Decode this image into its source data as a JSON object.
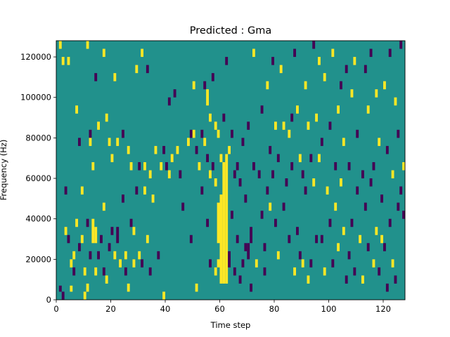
{
  "chart_data": {
    "type": "heatmap",
    "title": "Predicted : Gma",
    "xlabel": "Time step",
    "ylabel": "Frequency (Hz)",
    "xlim": [
      0,
      128
    ],
    "ylim": [
      0,
      128000
    ],
    "x_ticks": [
      0,
      20,
      40,
      60,
      80,
      100,
      120
    ],
    "x_tick_labels": [
      "0",
      "20",
      "40",
      "60",
      "80",
      "100",
      "120"
    ],
    "y_ticks": [
      0,
      20000,
      40000,
      60000,
      80000,
      100000,
      120000
    ],
    "y_tick_labels": [
      "0",
      "20000",
      "40000",
      "60000",
      "80000",
      "100000",
      "120000"
    ],
    "grid": false,
    "colormap": "viridis",
    "levels": [
      -1,
      0,
      1
    ],
    "level_colors": {
      "-1": "#440154",
      "0": "#21918c",
      "1": "#fde725"
    },
    "background_level": 0,
    "cells_note": "each cell = [time_step, frequency_bin_start_Hz, frequency_bin_end_Hz, level]",
    "cells": [
      [
        1,
        124000,
        128000,
        1
      ],
      [
        1,
        4000,
        7000,
        -1
      ],
      [
        2,
        116000,
        120000,
        1
      ],
      [
        2,
        0,
        4000,
        -1
      ],
      [
        3,
        52000,
        56000,
        -1
      ],
      [
        3,
        32000,
        36000,
        1
      ],
      [
        4,
        116000,
        120000,
        1
      ],
      [
        4,
        28000,
        32000,
        -1
      ],
      [
        5,
        16000,
        20000,
        1
      ],
      [
        5,
        4000,
        7000,
        1
      ],
      [
        6,
        20000,
        24000,
        1
      ],
      [
        6,
        12000,
        16000,
        -1
      ],
      [
        7,
        92000,
        96000,
        1
      ],
      [
        7,
        36000,
        40000,
        1
      ],
      [
        8,
        76000,
        80000,
        -1
      ],
      [
        8,
        24000,
        28000,
        -1
      ],
      [
        9,
        52000,
        56000,
        1
      ],
      [
        9,
        28000,
        32000,
        1
      ],
      [
        10,
        12000,
        16000,
        1
      ],
      [
        10,
        0,
        4000,
        1
      ],
      [
        11,
        124000,
        128000,
        1
      ],
      [
        11,
        36000,
        40000,
        -1
      ],
      [
        11,
        4000,
        8000,
        1
      ],
      [
        12,
        80000,
        84000,
        -1
      ],
      [
        12,
        76000,
        80000,
        1
      ],
      [
        12,
        20000,
        24000,
        -1
      ],
      [
        13,
        64000,
        68000,
        1
      ],
      [
        13,
        28000,
        40000,
        1
      ],
      [
        14,
        108000,
        112000,
        -1
      ],
      [
        14,
        28000,
        36000,
        1
      ],
      [
        14,
        12000,
        16000,
        1
      ],
      [
        15,
        84000,
        88000,
        1
      ],
      [
        15,
        20000,
        24000,
        -1
      ],
      [
        16,
        28000,
        32000,
        -1
      ],
      [
        17,
        120000,
        124000,
        1
      ],
      [
        17,
        44000,
        48000,
        1
      ],
      [
        17,
        12000,
        16000,
        -1
      ],
      [
        18,
        88000,
        92000,
        1
      ],
      [
        18,
        8000,
        12000,
        1
      ],
      [
        19,
        76000,
        80000,
        1
      ],
      [
        19,
        24000,
        28000,
        -1
      ],
      [
        20,
        68000,
        72000,
        1
      ],
      [
        20,
        32000,
        36000,
        -1
      ],
      [
        21,
        108000,
        112000,
        1
      ],
      [
        21,
        20000,
        24000,
        1
      ],
      [
        22,
        76000,
        80000,
        1
      ],
      [
        22,
        28000,
        36000,
        -1
      ],
      [
        23,
        16000,
        20000,
        1
      ],
      [
        24,
        80000,
        84000,
        -1
      ],
      [
        24,
        48000,
        52000,
        -1
      ],
      [
        25,
        20000,
        24000,
        1
      ],
      [
        25,
        12000,
        16000,
        -1
      ],
      [
        26,
        72000,
        76000,
        1
      ],
      [
        26,
        4000,
        8000,
        1
      ],
      [
        27,
        64000,
        68000,
        1
      ],
      [
        27,
        36000,
        40000,
        -1
      ],
      [
        28,
        16000,
        20000,
        1
      ],
      [
        28,
        32000,
        36000,
        1
      ],
      [
        29,
        112000,
        116000,
        1
      ],
      [
        29,
        52000,
        56000,
        -1
      ],
      [
        30,
        20000,
        24000,
        1
      ],
      [
        30,
        64000,
        68000,
        -1
      ],
      [
        31,
        120000,
        124000,
        1
      ],
      [
        31,
        16000,
        20000,
        -1
      ],
      [
        32,
        52000,
        56000,
        1
      ],
      [
        32,
        64000,
        68000,
        1
      ],
      [
        33,
        112000,
        116000,
        -1
      ],
      [
        33,
        28000,
        32000,
        1
      ],
      [
        34,
        60000,
        64000,
        1
      ],
      [
        34,
        12000,
        16000,
        -1
      ],
      [
        35,
        48000,
        52000,
        1
      ],
      [
        36,
        72000,
        76000,
        1
      ],
      [
        37,
        20000,
        24000,
        -1
      ],
      [
        38,
        64000,
        68000,
        1
      ],
      [
        39,
        72000,
        76000,
        -1
      ],
      [
        39,
        0,
        4000,
        1
      ],
      [
        40,
        64000,
        68000,
        -1
      ],
      [
        41,
        96000,
        100000,
        -1
      ],
      [
        41,
        60000,
        64000,
        1
      ],
      [
        42,
        68000,
        72000,
        1
      ],
      [
        43,
        100000,
        104000,
        -1
      ],
      [
        44,
        72000,
        76000,
        1
      ],
      [
        45,
        60000,
        64000,
        -1
      ],
      [
        46,
        44000,
        48000,
        -1
      ],
      [
        48,
        76000,
        80000,
        1
      ],
      [
        49,
        80000,
        84000,
        -1
      ],
      [
        49,
        28000,
        32000,
        -1
      ],
      [
        50,
        104000,
        108000,
        1
      ],
      [
        50,
        80000,
        84000,
        1
      ],
      [
        51,
        72000,
        76000,
        -1
      ],
      [
        51,
        4000,
        8000,
        1
      ],
      [
        52,
        64000,
        68000,
        1
      ],
      [
        53,
        80000,
        84000,
        -1
      ],
      [
        53,
        52000,
        56000,
        -1
      ],
      [
        54,
        104000,
        108000,
        -1
      ],
      [
        54,
        76000,
        80000,
        1
      ],
      [
        55,
        96000,
        104000,
        1
      ],
      [
        55,
        68000,
        72000,
        -1
      ],
      [
        55,
        36000,
        40000,
        -1
      ],
      [
        56,
        88000,
        92000,
        1
      ],
      [
        56,
        60000,
        64000,
        1
      ],
      [
        56,
        16000,
        20000,
        -1
      ],
      [
        57,
        108000,
        112000,
        -1
      ],
      [
        57,
        64000,
        68000,
        -1
      ],
      [
        58,
        84000,
        88000,
        1
      ],
      [
        58,
        56000,
        60000,
        1
      ],
      [
        58,
        12000,
        16000,
        1
      ],
      [
        59,
        80000,
        84000,
        1
      ],
      [
        59,
        28000,
        48000,
        1
      ],
      [
        59,
        16000,
        20000,
        1
      ],
      [
        60,
        8000,
        52000,
        1
      ],
      [
        60,
        68000,
        72000,
        1
      ],
      [
        61,
        8000,
        68000,
        1
      ],
      [
        61,
        88000,
        92000,
        -1
      ],
      [
        62,
        8000,
        72000,
        1
      ],
      [
        62,
        116000,
        120000,
        -1
      ],
      [
        63,
        16000,
        24000,
        -1
      ],
      [
        63,
        72000,
        76000,
        1
      ],
      [
        64,
        40000,
        44000,
        -1
      ],
      [
        64,
        80000,
        84000,
        -1
      ],
      [
        65,
        12000,
        16000,
        -1
      ],
      [
        65,
        60000,
        64000,
        -1
      ],
      [
        66,
        28000,
        32000,
        -1
      ],
      [
        66,
        64000,
        68000,
        -1
      ],
      [
        67,
        8000,
        12000,
        -1
      ],
      [
        67,
        56000,
        60000,
        -1
      ],
      [
        68,
        16000,
        20000,
        -1
      ],
      [
        68,
        76000,
        80000,
        -1
      ],
      [
        69,
        24000,
        28000,
        -1
      ],
      [
        69,
        48000,
        52000,
        -1
      ],
      [
        70,
        20000,
        28000,
        -1
      ],
      [
        70,
        84000,
        88000,
        -1
      ],
      [
        71,
        28000,
        36000,
        -1
      ],
      [
        71,
        4000,
        8000,
        -1
      ],
      [
        72,
        120000,
        124000,
        1
      ],
      [
        72,
        64000,
        68000,
        -1
      ],
      [
        73,
        16000,
        20000,
        1
      ],
      [
        74,
        60000,
        64000,
        -1
      ],
      [
        75,
        40000,
        44000,
        -1
      ],
      [
        75,
        92000,
        96000,
        -1
      ],
      [
        76,
        24000,
        28000,
        -1
      ],
      [
        76,
        12000,
        16000,
        -1
      ],
      [
        77,
        52000,
        56000,
        -1
      ],
      [
        77,
        104000,
        108000,
        1
      ],
      [
        78,
        72000,
        76000,
        -1
      ],
      [
        78,
        44000,
        48000,
        1
      ],
      [
        79,
        60000,
        64000,
        -1
      ],
      [
        79,
        116000,
        120000,
        -1
      ],
      [
        80,
        84000,
        88000,
        1
      ],
      [
        80,
        36000,
        40000,
        -1
      ],
      [
        81,
        68000,
        72000,
        -1
      ],
      [
        81,
        20000,
        24000,
        1
      ],
      [
        82,
        112000,
        116000,
        1
      ],
      [
        83,
        44000,
        48000,
        -1
      ],
      [
        83,
        84000,
        88000,
        1
      ],
      [
        84,
        56000,
        60000,
        -1
      ],
      [
        85,
        80000,
        84000,
        1
      ],
      [
        85,
        28000,
        32000,
        -1
      ],
      [
        86,
        88000,
        92000,
        -1
      ],
      [
        86,
        64000,
        68000,
        -1
      ],
      [
        87,
        120000,
        124000,
        -1
      ],
      [
        87,
        12000,
        16000,
        1
      ],
      [
        88,
        92000,
        96000,
        1
      ],
      [
        88,
        32000,
        36000,
        -1
      ],
      [
        89,
        68000,
        72000,
        1
      ],
      [
        89,
        20000,
        24000,
        -1
      ],
      [
        90,
        60000,
        64000,
        -1
      ],
      [
        90,
        16000,
        20000,
        1
      ],
      [
        91,
        104000,
        108000,
        1
      ],
      [
        91,
        52000,
        56000,
        -1
      ],
      [
        92,
        84000,
        88000,
        1
      ],
      [
        92,
        8000,
        12000,
        1
      ],
      [
        93,
        68000,
        72000,
        -1
      ],
      [
        93,
        16000,
        20000,
        -1
      ],
      [
        94,
        124000,
        128000,
        -1
      ],
      [
        94,
        56000,
        60000,
        1
      ],
      [
        95,
        88000,
        92000,
        1
      ],
      [
        95,
        28000,
        32000,
        -1
      ],
      [
        96,
        116000,
        120000,
        1
      ],
      [
        96,
        68000,
        72000,
        1
      ],
      [
        97,
        76000,
        80000,
        -1
      ],
      [
        97,
        28000,
        32000,
        -1
      ],
      [
        98,
        108000,
        112000,
        1
      ],
      [
        98,
        12000,
        16000,
        1
      ],
      [
        99,
        52000,
        56000,
        1
      ],
      [
        100,
        84000,
        88000,
        -1
      ],
      [
        100,
        36000,
        40000,
        -1
      ],
      [
        101,
        120000,
        124000,
        1
      ],
      [
        101,
        16000,
        20000,
        -1
      ],
      [
        102,
        64000,
        68000,
        -1
      ],
      [
        102,
        44000,
        48000,
        1
      ],
      [
        103,
        92000,
        96000,
        1
      ],
      [
        103,
        24000,
        28000,
        1
      ],
      [
        104,
        104000,
        108000,
        -1
      ],
      [
        104,
        56000,
        60000,
        1
      ],
      [
        105,
        76000,
        80000,
        1
      ],
      [
        105,
        32000,
        36000,
        1
      ],
      [
        106,
        112000,
        116000,
        -1
      ],
      [
        106,
        8000,
        12000,
        -1
      ],
      [
        107,
        64000,
        68000,
        -1
      ],
      [
        107,
        20000,
        24000,
        -1
      ],
      [
        108,
        100000,
        104000,
        1
      ],
      [
        108,
        36000,
        40000,
        -1
      ],
      [
        109,
        116000,
        120000,
        1
      ],
      [
        109,
        12000,
        16000,
        -1
      ],
      [
        110,
        80000,
        84000,
        -1
      ],
      [
        110,
        52000,
        56000,
        -1
      ],
      [
        111,
        28000,
        32000,
        1
      ],
      [
        112,
        60000,
        64000,
        -1
      ],
      [
        112,
        8000,
        12000,
        1
      ],
      [
        113,
        112000,
        116000,
        -1
      ],
      [
        113,
        44000,
        48000,
        -1
      ],
      [
        114,
        92000,
        96000,
        1
      ],
      [
        114,
        24000,
        28000,
        -1
      ],
      [
        115,
        120000,
        124000,
        -1
      ],
      [
        115,
        56000,
        60000,
        -1
      ],
      [
        116,
        64000,
        68000,
        -1
      ],
      [
        116,
        16000,
        20000,
        1
      ],
      [
        117,
        32000,
        36000,
        1
      ],
      [
        117,
        100000,
        104000,
        1
      ],
      [
        118,
        76000,
        80000,
        1
      ],
      [
        118,
        12000,
        16000,
        -1
      ],
      [
        119,
        28000,
        32000,
        1
      ],
      [
        119,
        48000,
        52000,
        -1
      ],
      [
        120,
        104000,
        108000,
        1
      ],
      [
        120,
        24000,
        28000,
        -1
      ],
      [
        121,
        72000,
        76000,
        -1
      ],
      [
        121,
        4000,
        8000,
        -1
      ],
      [
        122,
        120000,
        124000,
        -1
      ],
      [
        122,
        36000,
        40000,
        -1
      ],
      [
        123,
        60000,
        64000,
        1
      ],
      [
        123,
        16000,
        20000,
        1
      ],
      [
        124,
        96000,
        100000,
        1
      ],
      [
        124,
        8000,
        12000,
        -1
      ],
      [
        125,
        80000,
        84000,
        -1
      ],
      [
        125,
        44000,
        48000,
        -1
      ],
      [
        126,
        124000,
        128000,
        -1
      ],
      [
        126,
        52000,
        56000,
        -1
      ],
      [
        127,
        64000,
        68000,
        1
      ],
      [
        127,
        40000,
        44000,
        -1
      ]
    ]
  }
}
